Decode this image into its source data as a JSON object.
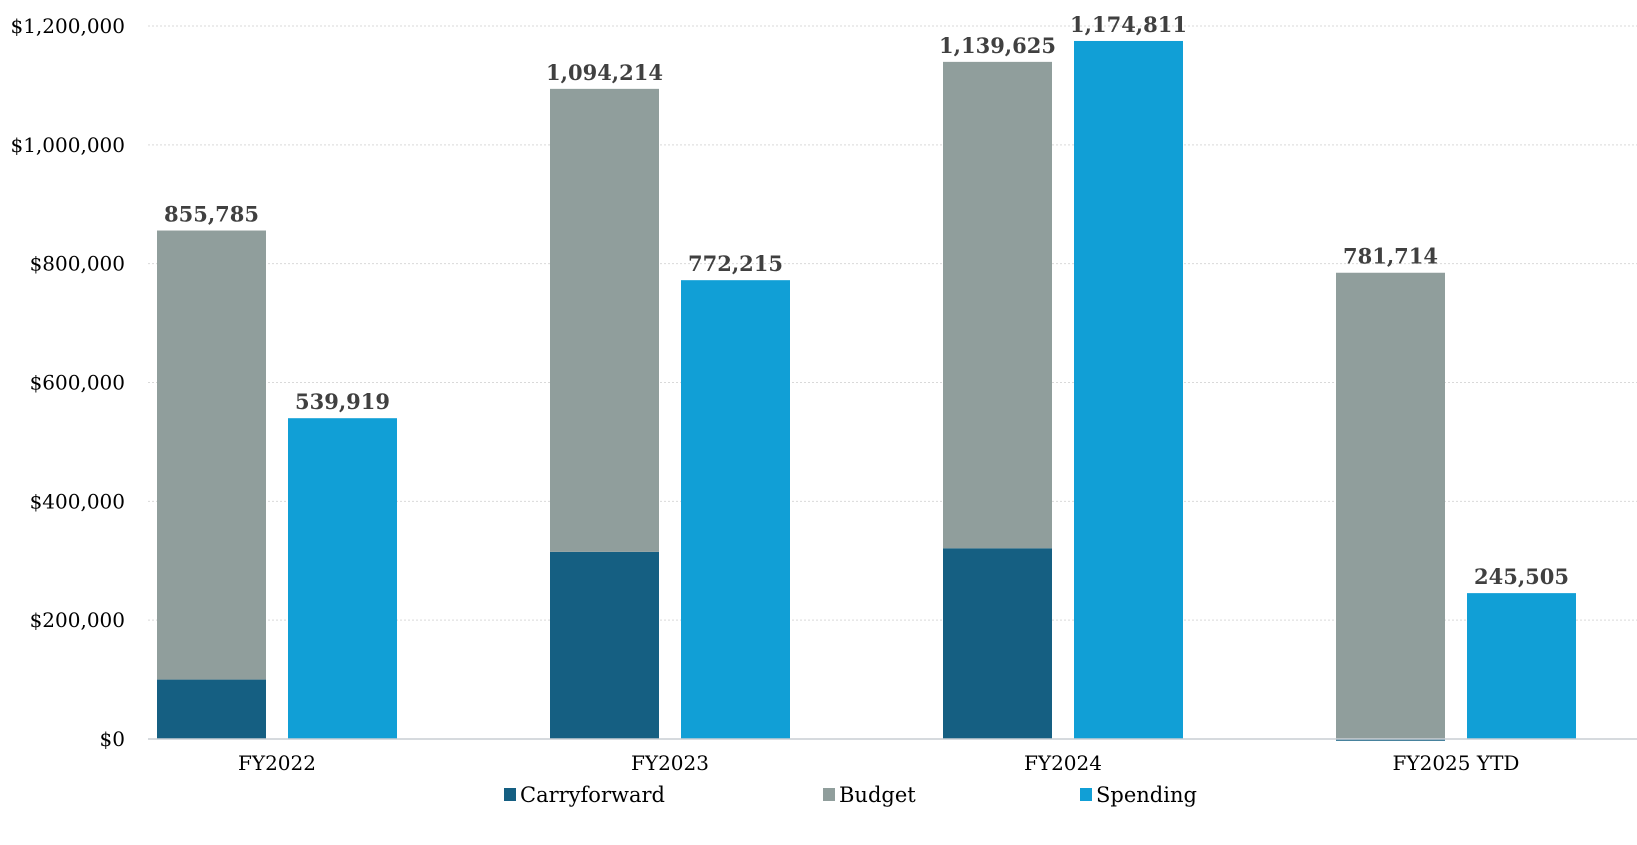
{
  "chart_data": {
    "type": "bar",
    "stacked_series": [
      "Carryforward",
      "Budget"
    ],
    "categories": [
      "FY2022",
      "FY2023",
      "FY2024",
      "FY2025 YTD"
    ],
    "series": [
      {
        "name": "Carryforward",
        "values": [
          100000,
          315000,
          321000,
          -3000
        ],
        "color": "#155f82"
      },
      {
        "name": "Budget",
        "values": [
          755785,
          779214,
          818625,
          784714
        ],
        "color": "#909e9c"
      },
      {
        "name": "Spending",
        "values": [
          539919,
          772215,
          1174811,
          245505
        ],
        "color": "#119fd6"
      }
    ],
    "data_labels": {
      "budget_totals": [
        "855,785",
        "1,094,214",
        "1,139,625",
        "781,714"
      ],
      "spending": [
        "539,919",
        "772,215",
        "1,174,811",
        "245,505"
      ]
    },
    "ylim": [
      0,
      1200000
    ],
    "yticks": [
      {
        "value": 0,
        "label": "$0"
      },
      {
        "value": 200000,
        "label": "$200,000"
      },
      {
        "value": 400000,
        "label": "$400,000"
      },
      {
        "value": 600000,
        "label": "$600,000"
      },
      {
        "value": 800000,
        "label": "$800,000"
      },
      {
        "value": 1000000,
        "label": "$1,000,000"
      },
      {
        "value": 1200000,
        "label": "$1,200,000"
      }
    ],
    "grid": true,
    "legend": {
      "position": "bottom",
      "entries": [
        {
          "label": "Carryforward",
          "color": "#155f82"
        },
        {
          "label": "Budget",
          "color": "#909e9c"
        },
        {
          "label": "Spending",
          "color": "#119fd6"
        }
      ]
    }
  }
}
